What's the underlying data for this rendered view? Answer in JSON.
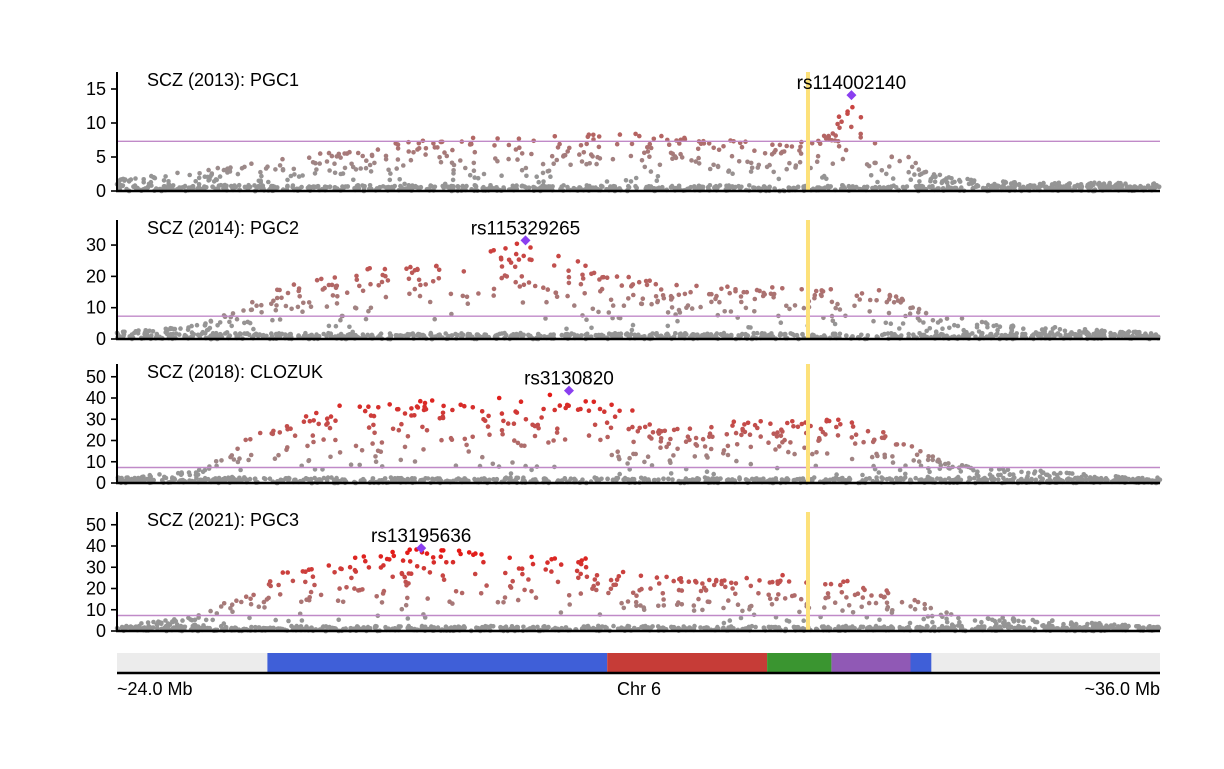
{
  "chart_data": {
    "type": "scatter",
    "chart_kind": "stacked Manhattan / locus-zoom plots",
    "chromosome_label": "Chr 6",
    "x_range_label_left": "~24.0 Mb",
    "x_range_label_right": "~36.0 Mb",
    "x_range_mb": [
      24.0,
      36.0
    ],
    "grid": false,
    "colors": {
      "background_point": "#959595",
      "top_point": "#e8130f",
      "lead_variant": "#8a3ff0",
      "significance_line": "#c08ac8",
      "highlight_band": "#fde17a",
      "axis": "#000000"
    },
    "highlight_position_mb": 31.95,
    "significance_threshold": 7.3,
    "panels": [
      {
        "title": "SCZ (2013): PGC1",
        "ylim": [
          0,
          17.5
        ],
        "yticks": [
          0,
          5,
          10,
          15
        ],
        "lead_variant": {
          "label": "rs114002140",
          "x_mb": 32.45,
          "y": 14.1
        },
        "peak_value": 14.1
      },
      {
        "title": "SCZ (2014): PGC2",
        "ylim": [
          0,
          38
        ],
        "yticks": [
          0,
          10,
          20,
          30
        ],
        "lead_variant": {
          "label": "rs115329265",
          "x_mb": 28.7,
          "y": 31.5
        },
        "peak_value": 31.5
      },
      {
        "title": "SCZ (2018): CLOZUK",
        "ylim": [
          0,
          56
        ],
        "yticks": [
          0,
          10,
          20,
          30,
          40,
          50
        ],
        "lead_variant": {
          "label": "rs3130820",
          "x_mb": 29.2,
          "y": 43.5
        },
        "peak_value": 43.5
      },
      {
        "title": "SCZ (2021): PGC3",
        "ylim": [
          0,
          56
        ],
        "yticks": [
          0,
          10,
          20,
          30,
          40,
          50
        ],
        "lead_variant": {
          "label": "rs13195636",
          "x_mb": 27.5,
          "y": 39
        },
        "peak_value": 39
      }
    ],
    "region_track": [
      {
        "start_mb": 24.0,
        "end_mb": 25.73,
        "color": "#ececec"
      },
      {
        "start_mb": 25.73,
        "end_mb": 29.64,
        "color": "#3f5fd8"
      },
      {
        "start_mb": 29.64,
        "end_mb": 31.48,
        "color": "#c63c37"
      },
      {
        "start_mb": 31.48,
        "end_mb": 32.22,
        "color": "#3a9530"
      },
      {
        "start_mb": 32.22,
        "end_mb": 33.13,
        "color": "#9059b5"
      },
      {
        "start_mb": 33.13,
        "end_mb": 33.37,
        "color": "#3f5fd8"
      },
      {
        "start_mb": 33.37,
        "end_mb": 36.0,
        "color": "#ececec"
      }
    ]
  }
}
